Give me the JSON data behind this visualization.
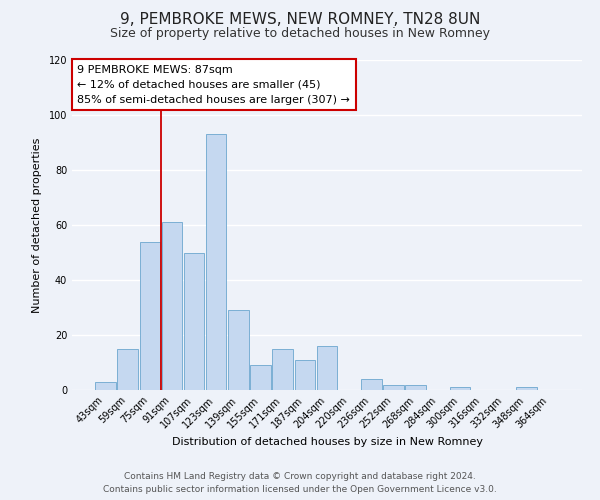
{
  "title": "9, PEMBROKE MEWS, NEW ROMNEY, TN28 8UN",
  "subtitle": "Size of property relative to detached houses in New Romney",
  "xlabel": "Distribution of detached houses by size in New Romney",
  "ylabel": "Number of detached properties",
  "categories": [
    "43sqm",
    "59sqm",
    "75sqm",
    "91sqm",
    "107sqm",
    "123sqm",
    "139sqm",
    "155sqm",
    "171sqm",
    "187sqm",
    "204sqm",
    "220sqm",
    "236sqm",
    "252sqm",
    "268sqm",
    "284sqm",
    "300sqm",
    "316sqm",
    "332sqm",
    "348sqm",
    "364sqm"
  ],
  "values": [
    3,
    15,
    54,
    61,
    50,
    93,
    29,
    9,
    15,
    11,
    16,
    0,
    4,
    2,
    2,
    0,
    1,
    0,
    0,
    1,
    0
  ],
  "bar_color": "#c5d8f0",
  "bar_edge_color": "#7bafd4",
  "vline_color": "#cc0000",
  "annotation_line1": "9 PEMBROKE MEWS: 87sqm",
  "annotation_line2": "← 12% of detached houses are smaller (45)",
  "annotation_line3": "85% of semi-detached houses are larger (307) →",
  "annotation_box_color": "#cc0000",
  "ylim": [
    0,
    120
  ],
  "yticks": [
    0,
    20,
    40,
    60,
    80,
    100,
    120
  ],
  "footer1": "Contains HM Land Registry data © Crown copyright and database right 2024.",
  "footer2": "Contains public sector information licensed under the Open Government Licence v3.0.",
  "background_color": "#eef2f9",
  "plot_bg_color": "#eef2f9",
  "grid_color": "#ffffff",
  "title_fontsize": 11,
  "subtitle_fontsize": 9,
  "footer_fontsize": 6.5,
  "axis_label_fontsize": 8,
  "tick_fontsize": 7,
  "annot_fontsize": 8
}
